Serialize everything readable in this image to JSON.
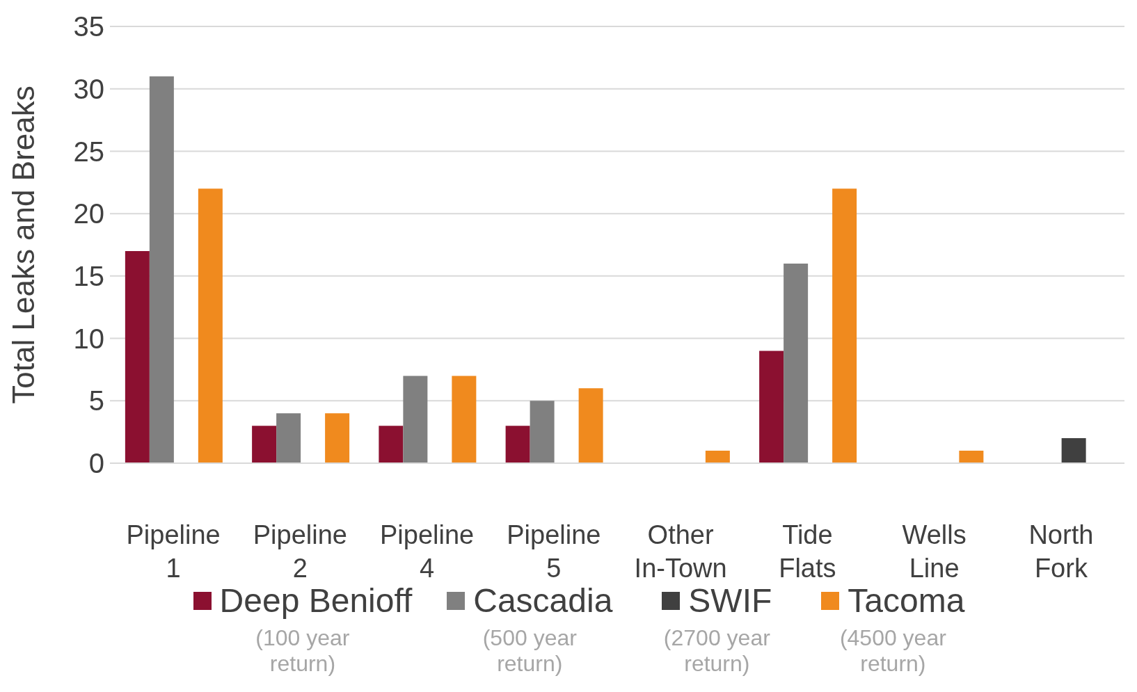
{
  "chart_data": {
    "type": "bar",
    "ylabel": "Total Leaks and Breaks",
    "categories": [
      "Pipeline 1",
      "Pipeline 2",
      "Pipeline 4",
      "Pipeline 5",
      "Other In-Town",
      "Tide Flats",
      "Wells Line",
      "North Fork"
    ],
    "series": [
      {
        "name": "Deep Benioff",
        "color": "#8b1030",
        "values": [
          17,
          3,
          3,
          3,
          0,
          9,
          0,
          0
        ]
      },
      {
        "name": "Cascadia",
        "color": "#808080",
        "values": [
          31,
          4,
          7,
          5,
          0,
          16,
          0,
          0
        ]
      },
      {
        "name": "SWIF",
        "color": "#404040",
        "values": [
          0,
          0,
          0,
          0,
          0,
          0,
          0,
          2
        ]
      },
      {
        "name": "Tacoma",
        "color": "#f08a1e",
        "values": [
          22,
          4,
          7,
          6,
          1,
          22,
          1,
          0
        ]
      }
    ],
    "ylim": [
      0,
      35
    ],
    "yticks": [
      0,
      5,
      10,
      15,
      20,
      25,
      30,
      35
    ],
    "grid": "y",
    "legend": "bottom",
    "annotations": [
      "(100 year return)",
      "(500 year return)",
      "(2700 year return)",
      "(4500 year return)"
    ]
  }
}
